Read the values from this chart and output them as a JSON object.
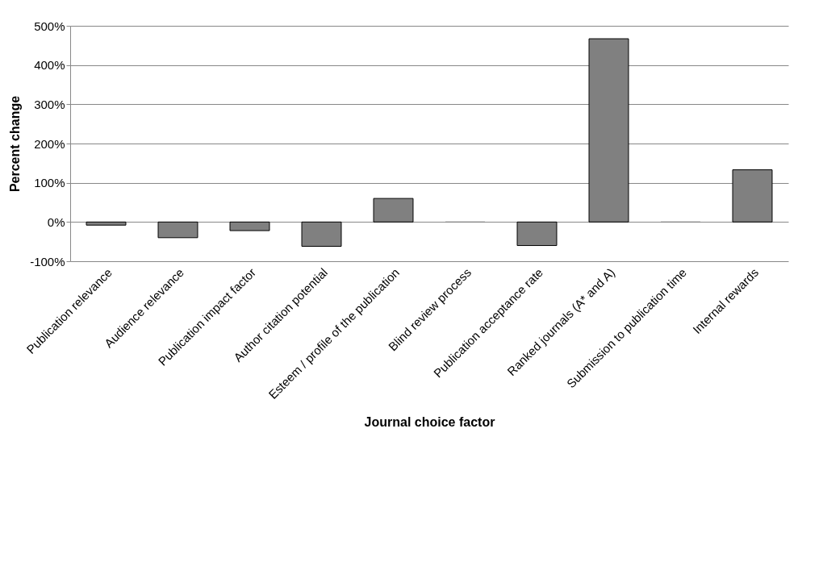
{
  "chart_data": {
    "type": "bar",
    "xlabel": "Journal choice factor",
    "ylabel": "Percent change",
    "categories": [
      "Publication relevance",
      "Audience relevance",
      "Publication impact factor",
      "Author citation potential",
      "Esteem / profile of the publication",
      "Blind review process",
      "Publication acceptance rate",
      "Ranked journals (A* and A)",
      "Submission to publication time",
      "Internal rewards"
    ],
    "values": [
      -8,
      -40,
      -22,
      -62,
      60,
      0,
      -60,
      467,
      0,
      133
    ],
    "color": "#808080",
    "ylim": [
      -100,
      500
    ],
    "yticks": [
      {
        "value": -100,
        "label": "-100%"
      },
      {
        "value": 0,
        "label": "0%"
      },
      {
        "value": 100,
        "label": "100%"
      },
      {
        "value": 200,
        "label": "200%"
      },
      {
        "value": 300,
        "label": "300%"
      },
      {
        "value": 400,
        "label": "400%"
      },
      {
        "value": 500,
        "label": "500%"
      }
    ],
    "grid": "y"
  }
}
